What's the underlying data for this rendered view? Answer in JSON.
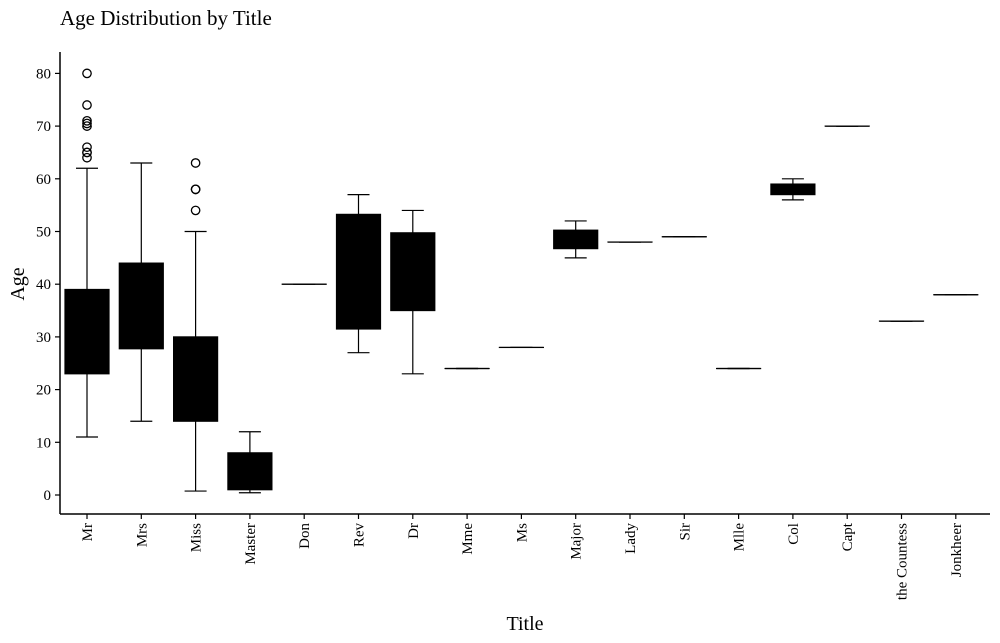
{
  "chart_data": {
    "type": "box",
    "title": "Age Distribution by Title",
    "xlabel": "Title",
    "ylabel": "Age",
    "ylim": [
      -3.5,
      84
    ],
    "yticks": [
      0,
      10,
      20,
      30,
      40,
      50,
      60,
      70,
      80
    ],
    "grid": false,
    "box_color": "#000000",
    "categories": [
      "Mr",
      "Mrs",
      "Miss",
      "Master",
      "Don",
      "Rev",
      "Dr",
      "Mme",
      "Ms",
      "Major",
      "Lady",
      "Sir",
      "Mlle",
      "Col",
      "Capt",
      "the Countess",
      "Jonkheer"
    ],
    "boxes": [
      {
        "category": "Mr",
        "whisker_low": 11,
        "q1": 23,
        "median": 30,
        "q3": 39,
        "whisker_high": 62,
        "outliers": [
          64,
          65,
          65,
          66,
          70,
          70.5,
          71,
          74,
          80
        ]
      },
      {
        "category": "Mrs",
        "whisker_low": 14,
        "q1": 27.75,
        "median": 35,
        "q3": 44,
        "whisker_high": 63,
        "outliers": []
      },
      {
        "category": "Miss",
        "whisker_low": 0.75,
        "q1": 14,
        "median": 21,
        "q3": 30,
        "whisker_high": 50,
        "outliers": [
          54,
          58,
          58,
          63
        ]
      },
      {
        "category": "Master",
        "whisker_low": 0.42,
        "q1": 1,
        "median": 3.5,
        "q3": 8,
        "whisker_high": 12,
        "outliers": []
      },
      {
        "category": "Don",
        "whisker_low": 40,
        "q1": 40,
        "median": 40,
        "q3": 40,
        "whisker_high": 40,
        "outliers": []
      },
      {
        "category": "Rev",
        "whisker_low": 27,
        "q1": 31.5,
        "median": 46.5,
        "q3": 53.25,
        "whisker_high": 57,
        "outliers": []
      },
      {
        "category": "Dr",
        "whisker_low": 23,
        "q1": 35,
        "median": 46.5,
        "q3": 49.75,
        "whisker_high": 54,
        "outliers": []
      },
      {
        "category": "Mme",
        "whisker_low": 24,
        "q1": 24,
        "median": 24,
        "q3": 24,
        "whisker_high": 24,
        "outliers": []
      },
      {
        "category": "Ms",
        "whisker_low": 28,
        "q1": 28,
        "median": 28,
        "q3": 28,
        "whisker_high": 28,
        "outliers": []
      },
      {
        "category": "Major",
        "whisker_low": 45,
        "q1": 46.75,
        "median": 48.5,
        "q3": 50.25,
        "whisker_high": 52,
        "outliers": []
      },
      {
        "category": "Lady",
        "whisker_low": 48,
        "q1": 48,
        "median": 48,
        "q3": 48,
        "whisker_high": 48,
        "outliers": []
      },
      {
        "category": "Sir",
        "whisker_low": 49,
        "q1": 49,
        "median": 49,
        "q3": 49,
        "whisker_high": 49,
        "outliers": []
      },
      {
        "category": "Mlle",
        "whisker_low": 24,
        "q1": 24,
        "median": 24,
        "q3": 24,
        "whisker_high": 24,
        "outliers": []
      },
      {
        "category": "Col",
        "whisker_low": 56,
        "q1": 57,
        "median": 58,
        "q3": 59,
        "whisker_high": 60,
        "outliers": []
      },
      {
        "category": "Capt",
        "whisker_low": 70,
        "q1": 70,
        "median": 70,
        "q3": 70,
        "whisker_high": 70,
        "outliers": []
      },
      {
        "category": "the Countess",
        "whisker_low": 33,
        "q1": 33,
        "median": 33,
        "q3": 33,
        "whisker_high": 33,
        "outliers": []
      },
      {
        "category": "Jonkheer",
        "whisker_low": 38,
        "q1": 38,
        "median": 38,
        "q3": 38,
        "whisker_high": 38,
        "outliers": []
      }
    ]
  }
}
